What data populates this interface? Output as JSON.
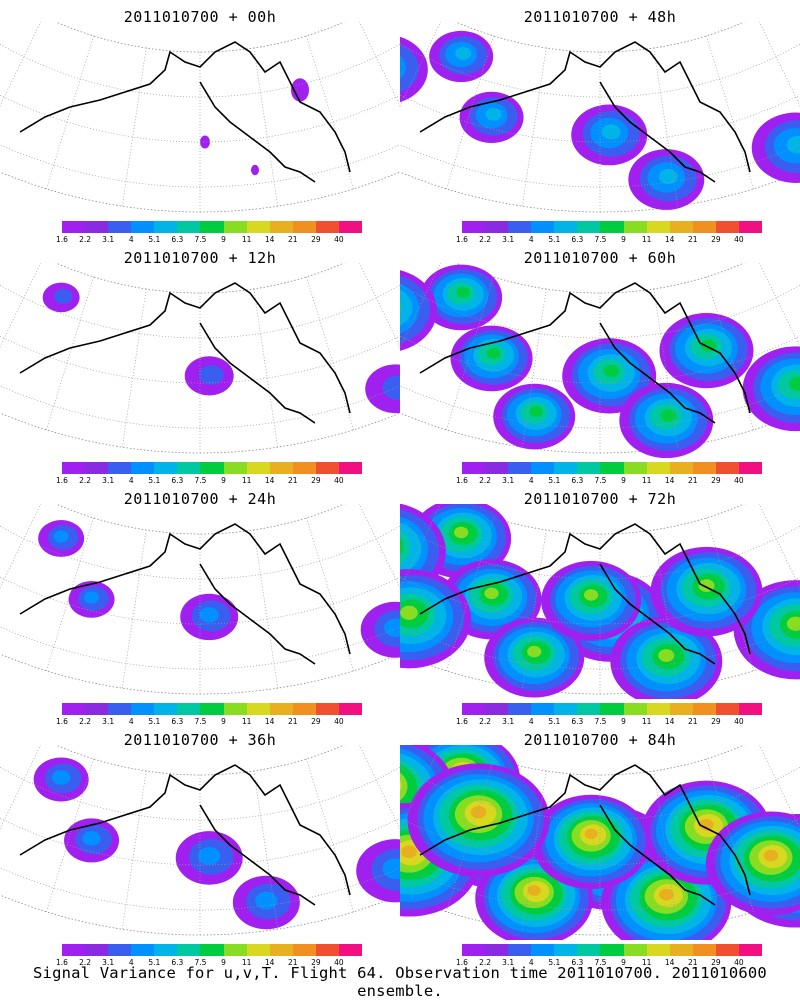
{
  "panels": [
    {
      "title": "2011010700 + 00h",
      "intensity": 0
    },
    {
      "title": "2011010700 + 48h",
      "intensity": 2
    },
    {
      "title": "2011010700 + 12h",
      "intensity": 0.5
    },
    {
      "title": "2011010700 + 60h",
      "intensity": 3
    },
    {
      "title": "2011010700 + 24h",
      "intensity": 1
    },
    {
      "title": "2011010700 + 72h",
      "intensity": 4
    },
    {
      "title": "2011010700 + 36h",
      "intensity": 1.5
    },
    {
      "title": "2011010700 + 84h",
      "intensity": 5
    }
  ],
  "colorbar": {
    "labels": [
      "1.6",
      "2.2",
      "3.1",
      "4",
      "5.1",
      "6.3",
      "7.5",
      "9",
      "11",
      "14",
      "21",
      "29",
      "40"
    ],
    "colors": [
      "#a020f0",
      "#8a2be2",
      "#3a5ff0",
      "#0090ff",
      "#00b4e8",
      "#00c8a0",
      "#00cc40",
      "#88dd22",
      "#d8d820",
      "#e8b020",
      "#f09020",
      "#f05030",
      "#f01080"
    ]
  },
  "caption": "Signal Variance for u,v,T. Flight 64. Observation time 2011010700. 2011010600 ensemble."
}
